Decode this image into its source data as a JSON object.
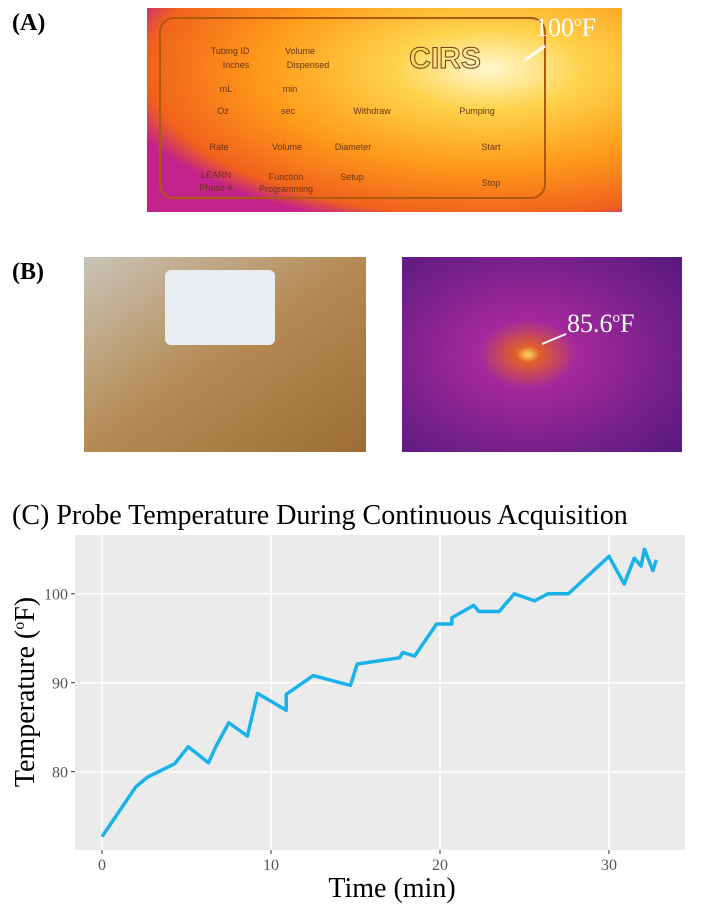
{
  "panel_a": {
    "label": "(A)",
    "annotation": {
      "value": "100",
      "sup": "o",
      "unit": "F"
    },
    "pump_text": {
      "brand": "CIRS",
      "tubing_id": "Tubing ID",
      "volume_head": "Volume",
      "inches": "Inches",
      "dispensed": "Dispensed",
      "ml": "mL",
      "min": "min",
      "oz": "Oz",
      "sec": "sec",
      "withdraw": "Withdraw",
      "pumping": "Pumping",
      "rate": "Rate",
      "volume": "Volume",
      "diameter": "Diameter",
      "start": "Start",
      "stop": "Stop",
      "learn": "LEARN",
      "phase": "Phase #",
      "function": "Function",
      "programming": "Programming",
      "setup": "Setup"
    }
  },
  "panel_b": {
    "label": "(B)",
    "annotation": {
      "value": "85.6",
      "sup": "o",
      "unit": "F"
    }
  },
  "chart_data": {
    "type": "line",
    "title": "(C) Probe Temperature During Continuous Acquisition",
    "x_label": "Time (min)",
    "y_label": {
      "text": "Temperature (",
      "sup": "o",
      "unit": "F)"
    },
    "x": [
      0,
      2.0,
      2.7,
      4.3,
      5.1,
      6.3,
      6.7,
      7.5,
      8.6,
      9.2,
      10.1,
      10.9,
      10.9,
      12.5,
      14.7,
      15.1,
      17.6,
      17.8,
      18.5,
      19.8,
      20.7,
      20.7,
      22.0,
      22.3,
      23.5,
      24.4,
      25.6,
      26.4,
      27.6,
      30.0,
      30.9,
      31.5,
      31.9,
      32.1,
      32.6,
      32.8
    ],
    "values": [
      72.7,
      78.3,
      79.4,
      80.9,
      82.8,
      81.0,
      82.7,
      85.5,
      84.0,
      88.8,
      87.8,
      86.9,
      88.7,
      90.8,
      89.7,
      92.1,
      92.8,
      93.4,
      93.0,
      96.6,
      96.6,
      97.3,
      98.7,
      98.0,
      98.0,
      100.0,
      99.2,
      100.0,
      100.0,
      104.2,
      101.1,
      104.0,
      103.1,
      105.0,
      102.6,
      103.8
    ],
    "color": "#1ab2ea",
    "xlim": [
      -1.6,
      34.5
    ],
    "ylim": [
      71.2,
      106.6
    ],
    "xticks": [
      0,
      10,
      20,
      30
    ],
    "yticks": [
      80,
      90,
      100
    ],
    "grid": true
  }
}
